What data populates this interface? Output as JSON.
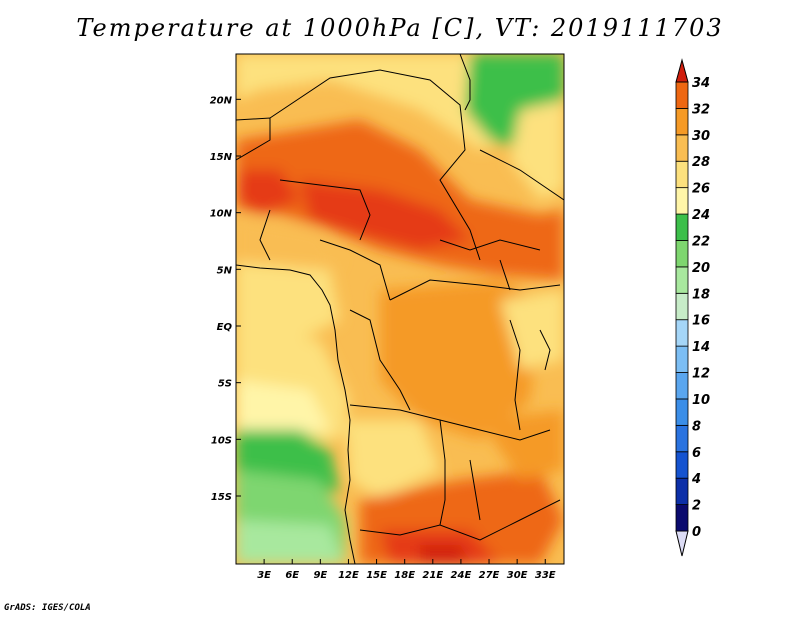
{
  "title": "Temperature at 1000hPa [C], VT: 2019111703",
  "credit": "GrADS: IGES/COLA",
  "map": {
    "lon_range": [
      0,
      35
    ],
    "lat_range": [
      -21,
      24
    ],
    "lon_ticks": [
      {
        "value": 3,
        "label": "3E"
      },
      {
        "value": 6,
        "label": "6E"
      },
      {
        "value": 9,
        "label": "9E"
      },
      {
        "value": 12,
        "label": "12E"
      },
      {
        "value": 15,
        "label": "15E"
      },
      {
        "value": 18,
        "label": "18E"
      },
      {
        "value": 21,
        "label": "21E"
      },
      {
        "value": 24,
        "label": "24E"
      },
      {
        "value": 27,
        "label": "27E"
      },
      {
        "value": 30,
        "label": "30E"
      },
      {
        "value": 33,
        "label": "33E"
      }
    ],
    "lat_ticks": [
      {
        "value": 20,
        "label": "20N"
      },
      {
        "value": 15,
        "label": "15N"
      },
      {
        "value": 10,
        "label": "10N"
      },
      {
        "value": 5,
        "label": "5N"
      },
      {
        "value": 0,
        "label": "EQ"
      },
      {
        "value": -5,
        "label": "5S"
      },
      {
        "value": -10,
        "label": "10S"
      },
      {
        "value": -15,
        "label": "15S"
      }
    ]
  },
  "colorbar": {
    "levels": [
      0,
      2,
      4,
      6,
      8,
      10,
      12,
      14,
      16,
      18,
      20,
      22,
      24,
      26,
      28,
      30,
      32,
      34
    ],
    "colors": [
      "#0a0a6e",
      "#0c2fa8",
      "#1553d0",
      "#2a73e0",
      "#3b8ee8",
      "#5aa6ef",
      "#7cbef4",
      "#a5d6f8",
      "#c7ecc8",
      "#a8e89e",
      "#7ed66f",
      "#3cbf4a",
      "#fff5a8",
      "#fde17e",
      "#f9bd52",
      "#f59a26",
      "#ee6712",
      "#e53b12",
      "#d01e0d"
    ],
    "under_color": "#dcdcf5"
  }
}
